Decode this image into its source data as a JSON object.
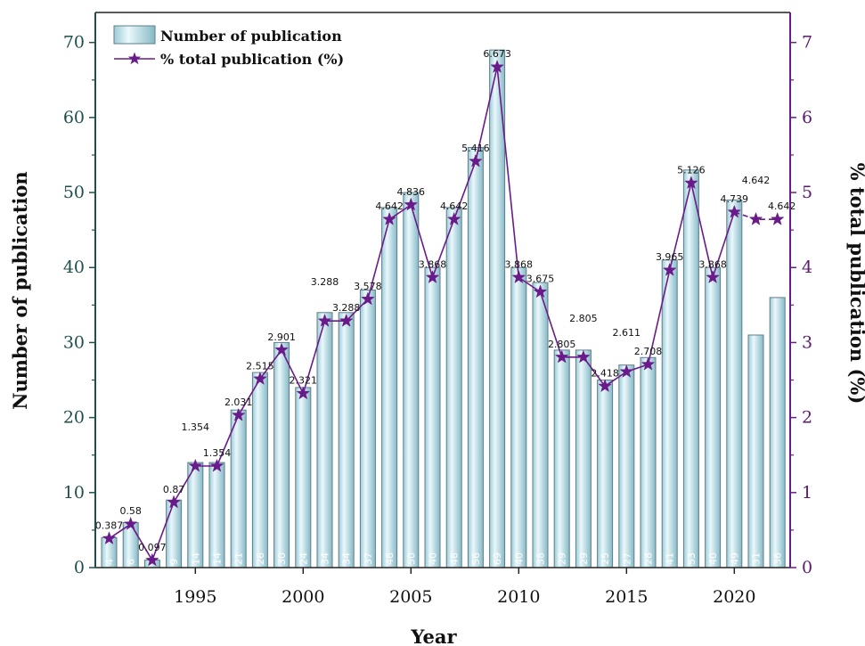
{
  "colors": {
    "bar_fill_light": "#e6f6fb",
    "bar_fill_dark": "#8fc2cf",
    "bar_stroke": "#5e7f8a",
    "line": "#6a1b8a",
    "left_axis": "#1f4e4e",
    "right_axis": "#6a1b8a"
  },
  "chart_data": {
    "type": "bar",
    "xlabel": "Year",
    "ylabel": "Number of publication",
    "y2label": "% total publication (%)",
    "x": [
      1991,
      1992,
      1993,
      1994,
      1995,
      1996,
      1997,
      1998,
      1999,
      2000,
      2001,
      2002,
      2003,
      2004,
      2005,
      2006,
      2007,
      2008,
      2009,
      2010,
      2011,
      2012,
      2013,
      2014,
      2015,
      2016,
      2017,
      2018,
      2019,
      2020,
      2021,
      2022
    ],
    "x_ticks": [
      "1995",
      "2000",
      "2005",
      "2010",
      "2015",
      "2020"
    ],
    "x_tick_values": [
      1995,
      2000,
      2005,
      2010,
      2015,
      2020
    ],
    "ylim": [
      0,
      74
    ],
    "y_ticks": [
      "0",
      "10",
      "20",
      "30",
      "40",
      "50",
      "60",
      "70"
    ],
    "y2lim": [
      0,
      7.4
    ],
    "y2_ticks": [
      "0",
      "1",
      "2",
      "3",
      "4",
      "5",
      "6",
      "7"
    ],
    "legend_position": "top-left",
    "series": [
      {
        "name": "Number of publication",
        "type": "bar",
        "values": [
          4,
          6,
          1,
          9,
          14,
          14,
          21,
          26,
          30,
          24,
          34,
          34,
          37,
          48,
          50,
          40,
          48,
          56,
          69,
          40,
          38,
          29,
          29,
          25,
          27,
          28,
          41,
          53,
          40,
          49,
          31,
          36
        ],
        "labels": [
          "4",
          "6",
          "1",
          "9",
          "14",
          "14",
          "21",
          "26",
          "30",
          "24",
          "34",
          "34",
          "37",
          "48",
          "50",
          "40",
          "48",
          "56",
          "69",
          "40",
          "38",
          "29",
          "29",
          "25",
          "27",
          "28",
          "41",
          "53",
          "40",
          "49",
          "31",
          "36"
        ]
      },
      {
        "name": "% total publication (%)",
        "type": "line",
        "axis": "right",
        "values": [
          0.387,
          0.58,
          0.097,
          0.87,
          1.354,
          1.354,
          2.031,
          2.515,
          2.901,
          2.321,
          3.288,
          3.288,
          3.578,
          4.642,
          4.836,
          3.868,
          4.642,
          5.416,
          6.673,
          3.868,
          3.675,
          2.805,
          2.805,
          2.418,
          2.611,
          2.708,
          3.965,
          5.126,
          3.868,
          4.739,
          4.642,
          4.642
        ],
        "labels": [
          "0.387",
          "0.58",
          "0.097",
          "0.87",
          "1.354",
          "1.354",
          "2.031",
          "2.515",
          "2.901",
          "2.321",
          "3.288",
          "3.288",
          "3.578",
          "4.642",
          "4.836",
          "3.868",
          "4.642",
          "5.416",
          "6.673",
          "3.868",
          "3.675",
          "2.805",
          "2.805",
          "2.418",
          "2.611",
          "2.708",
          "3.965",
          "5.126",
          "3.868",
          "4.739",
          "4.642",
          "4.642"
        ],
        "dashed_from_index": 29
      }
    ]
  }
}
